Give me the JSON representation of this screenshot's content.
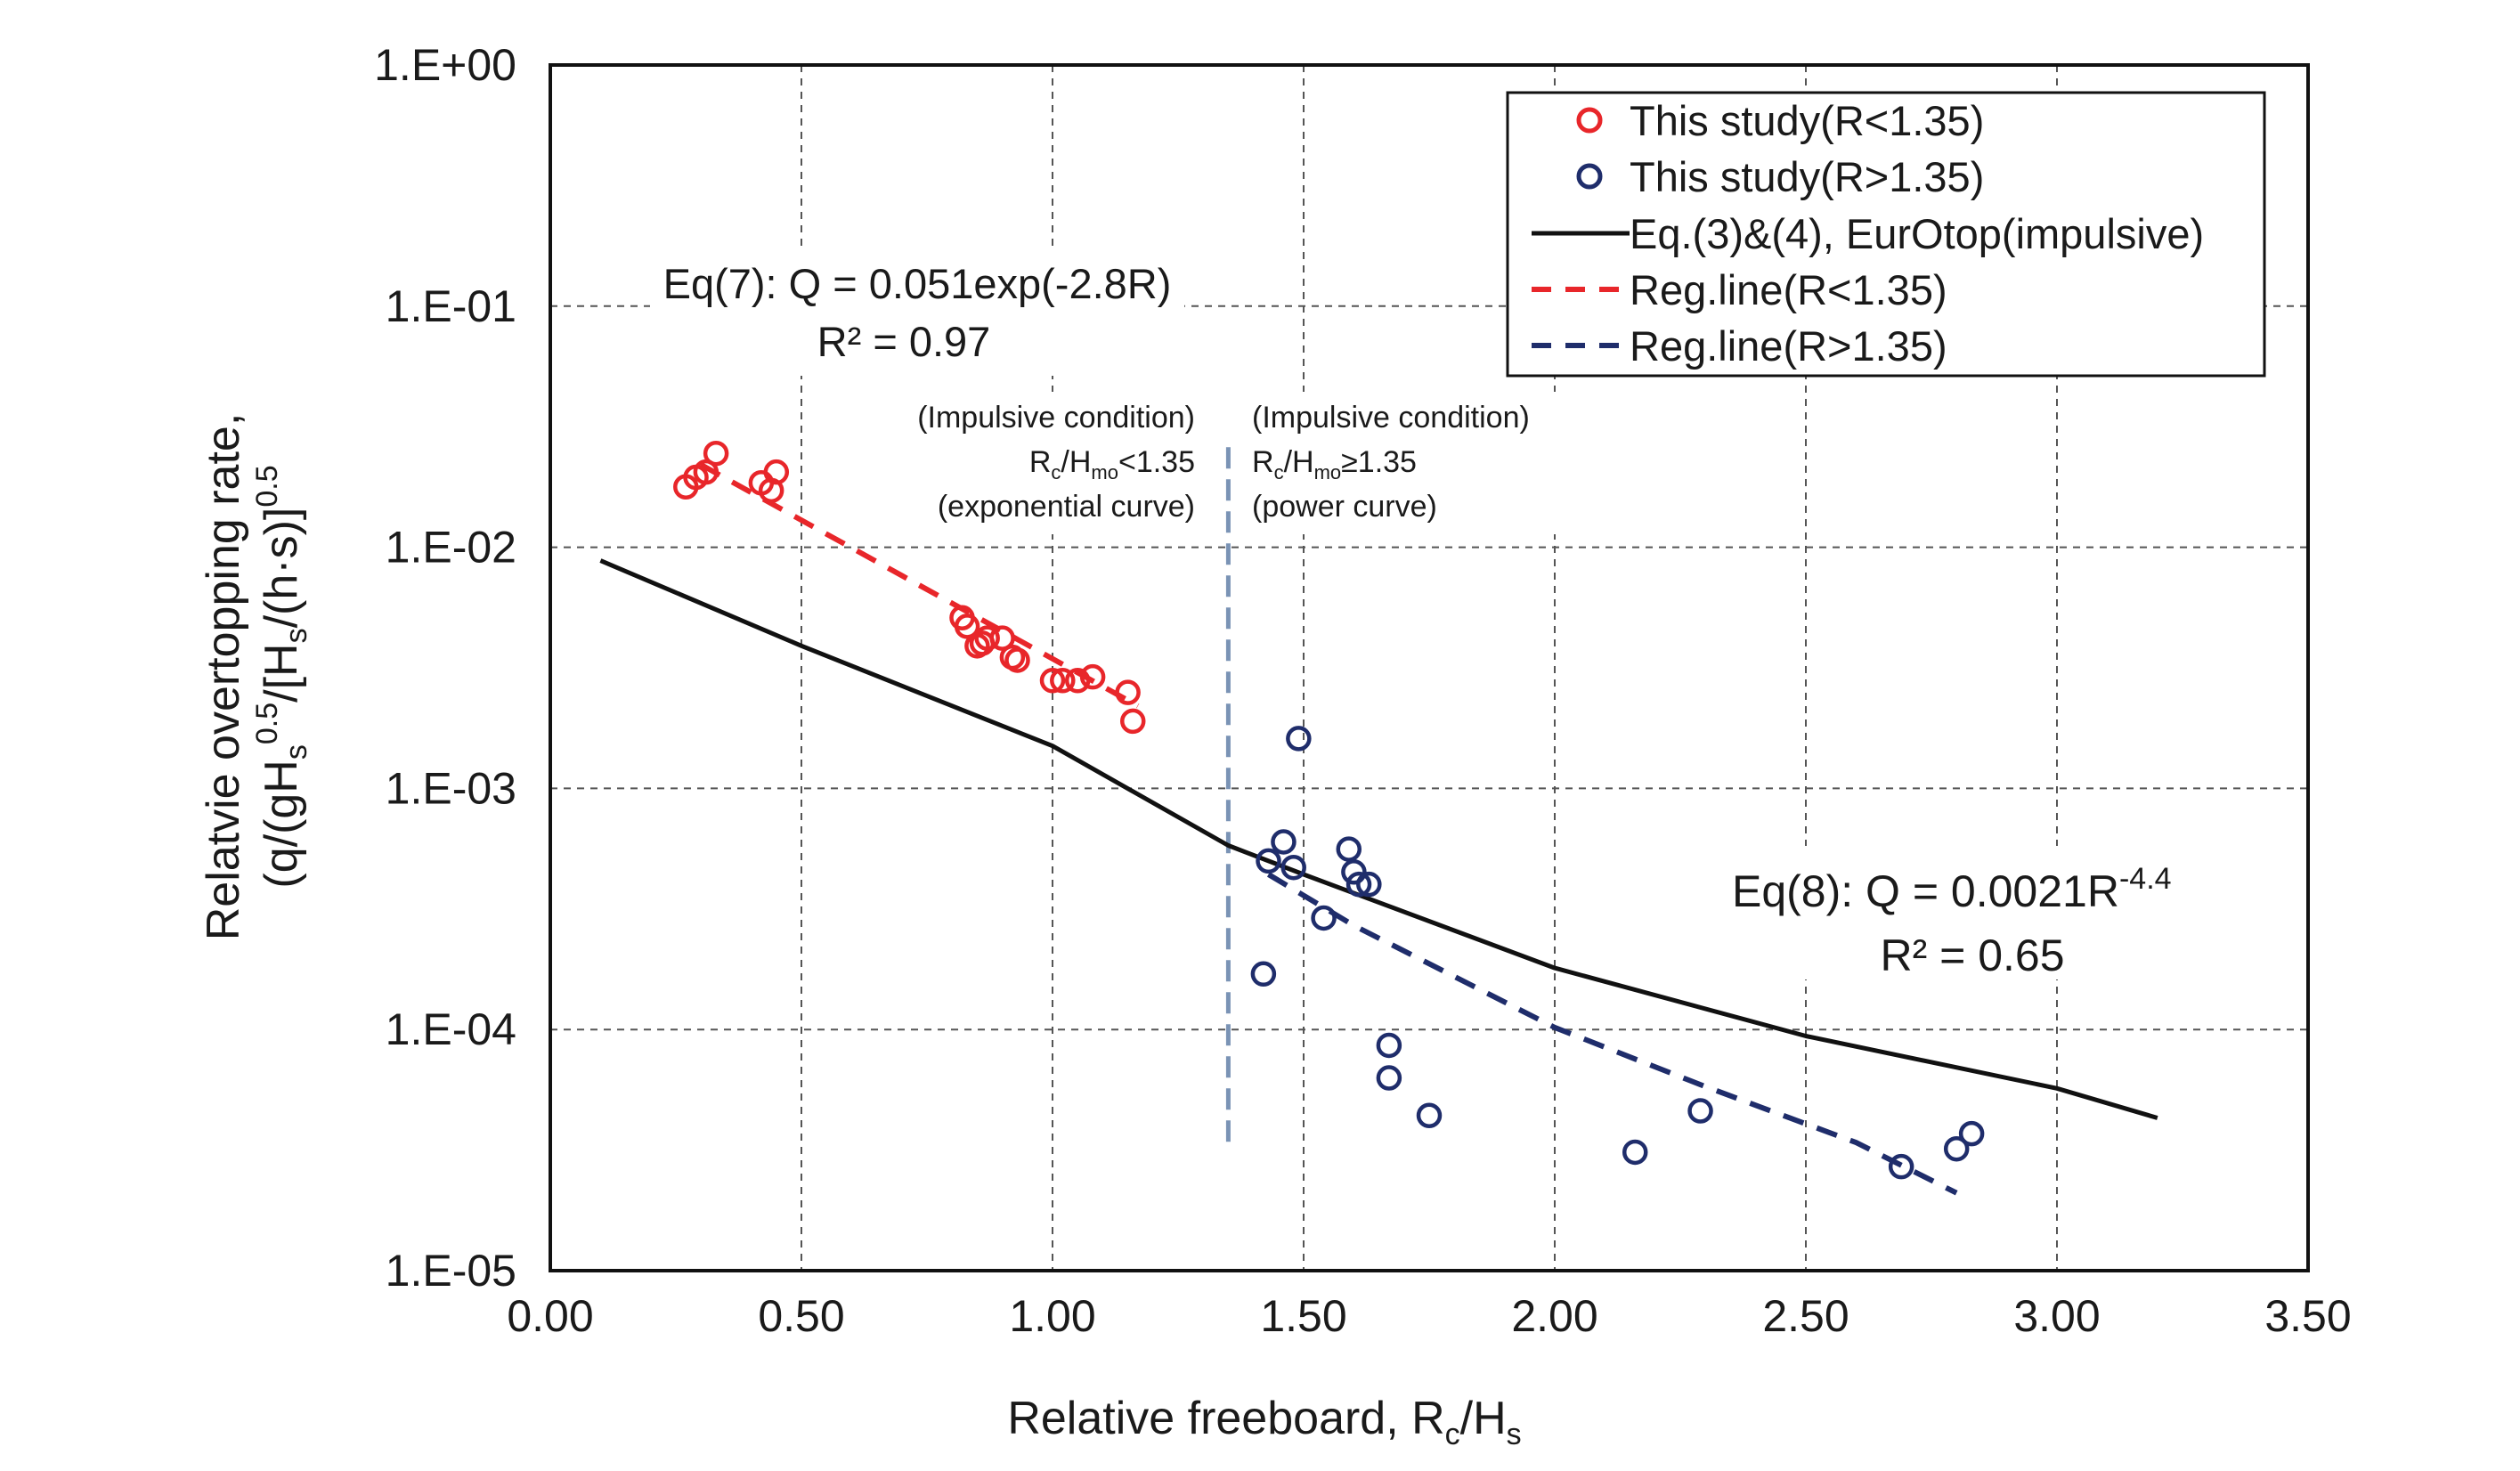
{
  "chart_data": {
    "type": "scatter",
    "xlabel": "Relative freeboard, R",
    "xlabel_sub": "c",
    "xlabel_tail": "/H",
    "xlabel_sub2": "s",
    "ylabel_line1": "Relatvie overtopping rate,",
    "ylabel_line2": "(q/(gH",
    "ylabel_line2_sub": "s",
    "ylabel_line2_sup": "0.5",
    "ylabel_line2_mid": "/[H",
    "ylabel_line2_sub2": "s",
    "ylabel_line2_mid2": "/(h·s)]",
    "ylabel_line2_sup2": "0.5",
    "xlim": [
      0,
      3.5
    ],
    "ylim": [
      1e-05,
      1
    ],
    "yscale": "log",
    "grid": true,
    "legend_position": "top-right",
    "x_ticks": [
      0,
      0.5,
      1,
      1.5,
      2,
      2.5,
      3,
      3.5
    ],
    "x_tick_labels": [
      "0.00",
      "0.50",
      "1.00",
      "1.50",
      "2.00",
      "2.50",
      "3.00",
      "3.50"
    ],
    "y_ticks": [
      1,
      0.1,
      0.01,
      0.001,
      0.0001,
      1e-05
    ],
    "y_tick_labels": [
      "1.E+00",
      "1.E-01",
      "1.E-02",
      "1.E-03",
      "1.E-04",
      "1.E-05"
    ],
    "threshold_x": 1.35,
    "threshold_y_range": [
      3.3e-05,
      0.026
    ],
    "series": [
      {
        "name": "This study(R<1.35)",
        "kind": "scatter",
        "color": "#e8262a",
        "points": [
          [
            0.27,
            0.0178
          ],
          [
            0.29,
            0.0195
          ],
          [
            0.31,
            0.0205
          ],
          [
            0.33,
            0.0245
          ],
          [
            0.42,
            0.0185
          ],
          [
            0.44,
            0.0172
          ],
          [
            0.45,
            0.0205
          ],
          [
            0.82,
            0.0051
          ],
          [
            0.83,
            0.0047
          ],
          [
            0.85,
            0.0039
          ],
          [
            0.86,
            0.004
          ],
          [
            0.87,
            0.0042
          ],
          [
            0.9,
            0.0042
          ],
          [
            0.92,
            0.0035
          ],
          [
            0.93,
            0.0034
          ],
          [
            1.0,
            0.0028
          ],
          [
            1.02,
            0.0028
          ],
          [
            1.05,
            0.0028
          ],
          [
            1.08,
            0.0029
          ],
          [
            1.15,
            0.0025
          ],
          [
            1.16,
            0.0019
          ]
        ]
      },
      {
        "name": "This study(R>1.35)",
        "kind": "scatter",
        "color": "#1f2d6b",
        "points": [
          [
            1.42,
            0.00017
          ],
          [
            1.43,
            0.0005
          ],
          [
            1.46,
            0.0006
          ],
          [
            1.48,
            0.00047
          ],
          [
            1.49,
            0.00161
          ],
          [
            1.54,
            0.00029
          ],
          [
            1.59,
            0.00056
          ],
          [
            1.6,
            0.00045
          ],
          [
            1.61,
            0.0004
          ],
          [
            1.63,
            0.0004
          ],
          [
            1.67,
            8.6e-05
          ],
          [
            1.67,
            6.3e-05
          ],
          [
            1.75,
            4.4e-05
          ],
          [
            2.16,
            3.1e-05
          ],
          [
            2.29,
            4.6e-05
          ],
          [
            2.69,
            2.7e-05
          ],
          [
            2.8,
            3.2e-05
          ],
          [
            2.83,
            3.7e-05
          ]
        ]
      },
      {
        "name": "Eq.(3)&(4), EurOtop(impulsive)",
        "kind": "line",
        "color": "#111111",
        "dash": "solid",
        "points": [
          [
            0.1,
            0.0088
          ],
          [
            0.5,
            0.0039
          ],
          [
            1.0,
            0.0015
          ],
          [
            1.35,
            0.00058
          ],
          [
            1.5,
            0.00044
          ],
          [
            2.0,
            0.00018
          ],
          [
            2.5,
            9.4e-05
          ],
          [
            3.0,
            5.7e-05
          ],
          [
            3.2,
            4.3e-05
          ]
        ]
      },
      {
        "name": "Reg.line(R<1.35)",
        "kind": "line",
        "color": "#e8262a",
        "dash": "dashed",
        "points": [
          [
            0.3,
            0.022
          ],
          [
            1.17,
            0.0022
          ]
        ]
      },
      {
        "name": "Reg.line(R>1.35)",
        "kind": "line",
        "color": "#1f2d6b",
        "dash": "dashed",
        "points": [
          [
            1.43,
            0.00044
          ],
          [
            1.6,
            0.00027
          ],
          [
            2.0,
            0.000102
          ],
          [
            2.3,
            5.8e-05
          ],
          [
            2.6,
            3.4e-05
          ],
          [
            2.8,
            2.1e-05
          ]
        ]
      }
    ],
    "annotations": {
      "eq7_line1": "Eq(7): Q = 0.051exp(-2.8R)",
      "eq7_line2": "R² = 0.97",
      "left_line1": "(Impulsive condition)",
      "left_line2_a": "R",
      "left_line2_sub_c": "c",
      "left_line2_b": "/H",
      "left_line2_sub_mo": "mo",
      "left_line2_tail": "<1.35",
      "left_line3": "(exponential curve)",
      "right_line1": "(Impulsive condition)",
      "right_line2_a": "R",
      "right_line2_sub_c": "c",
      "right_line2_b": "/H",
      "right_line2_sub_mo": "mo",
      "right_line2_tail": "≥1.35",
      "right_line3": "(power curve)",
      "eq8_line1_a": "Eq(8): Q = 0.0021R",
      "eq8_line1_sup": "-4.4",
      "eq8_line2": "R² = 0.65"
    }
  }
}
